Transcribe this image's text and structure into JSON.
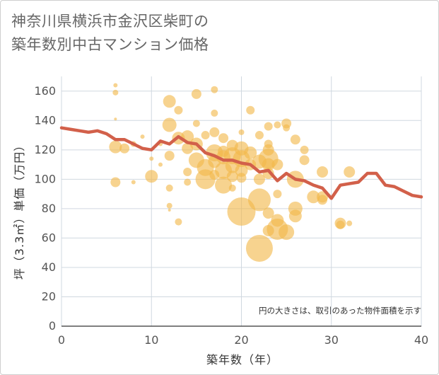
{
  "title_lines": [
    "神奈川県横浜市金沢区柴町の",
    "築年数別中古マンション価格"
  ],
  "chart_data": {
    "type": "scatter",
    "title": "神奈川県横浜市金沢区柴町の築年数別中古マンション価格",
    "xlabel": "築年数（年）",
    "ylabel": "坪（3.3㎡）単価（万円）",
    "xlim": [
      0,
      40
    ],
    "ylim": [
      0,
      170
    ],
    "xticks": [
      0,
      10,
      20,
      30,
      40
    ],
    "yticks": [
      0,
      20,
      40,
      60,
      80,
      100,
      120,
      140,
      160
    ],
    "grid": true,
    "note": "円の大きさは、取引のあった物件面積を示す",
    "colors": {
      "bubble": "#F2B84B",
      "line": "#D2604A",
      "grid": "#D0D8E0"
    },
    "bubble_series": {
      "points": [
        {
          "x": 6,
          "y": 164,
          "size": 3
        },
        {
          "x": 6,
          "y": 159,
          "size": 4
        },
        {
          "x": 6,
          "y": 141,
          "size": 2
        },
        {
          "x": 6,
          "y": 122,
          "size": 9
        },
        {
          "x": 6,
          "y": 98,
          "size": 7
        },
        {
          "x": 7,
          "y": 121,
          "size": 7
        },
        {
          "x": 8,
          "y": 124,
          "size": 4
        },
        {
          "x": 8,
          "y": 98,
          "size": 3
        },
        {
          "x": 9,
          "y": 129,
          "size": 3
        },
        {
          "x": 10,
          "y": 102,
          "size": 9
        },
        {
          "x": 10,
          "y": 114,
          "size": 3
        },
        {
          "x": 11,
          "y": 124,
          "size": 3
        },
        {
          "x": 11,
          "y": 110,
          "size": 3
        },
        {
          "x": 12,
          "y": 153,
          "size": 9
        },
        {
          "x": 12,
          "y": 137,
          "size": 10
        },
        {
          "x": 12,
          "y": 116,
          "size": 7
        },
        {
          "x": 12,
          "y": 94,
          "size": 5
        },
        {
          "x": 12,
          "y": 82,
          "size": 4
        },
        {
          "x": 12,
          "y": 79,
          "size": 2
        },
        {
          "x": 13,
          "y": 147,
          "size": 6
        },
        {
          "x": 13,
          "y": 71,
          "size": 5
        },
        {
          "x": 13,
          "y": 128,
          "size": 9
        },
        {
          "x": 14,
          "y": 129,
          "size": 9
        },
        {
          "x": 14,
          "y": 121,
          "size": 8
        },
        {
          "x": 14,
          "y": 105,
          "size": 6
        },
        {
          "x": 14,
          "y": 98,
          "size": 5
        },
        {
          "x": 15,
          "y": 158,
          "size": 7
        },
        {
          "x": 15,
          "y": 138,
          "size": 5
        },
        {
          "x": 15,
          "y": 124,
          "size": 9
        },
        {
          "x": 15,
          "y": 113,
          "size": 11
        },
        {
          "x": 16,
          "y": 130,
          "size": 6
        },
        {
          "x": 16,
          "y": 100,
          "size": 14
        },
        {
          "x": 16,
          "y": 108,
          "size": 12
        },
        {
          "x": 17,
          "y": 161,
          "size": 5
        },
        {
          "x": 17,
          "y": 145,
          "size": 5
        },
        {
          "x": 17,
          "y": 132,
          "size": 7
        },
        {
          "x": 17,
          "y": 118,
          "size": 12
        },
        {
          "x": 17,
          "y": 112,
          "size": 9
        },
        {
          "x": 17,
          "y": 103,
          "size": 7
        },
        {
          "x": 18,
          "y": 128,
          "size": 7
        },
        {
          "x": 18,
          "y": 115,
          "size": 10
        },
        {
          "x": 18,
          "y": 106,
          "size": 12
        },
        {
          "x": 18,
          "y": 96,
          "size": 12
        },
        {
          "x": 18,
          "y": 119,
          "size": 8
        },
        {
          "x": 19,
          "y": 123,
          "size": 8
        },
        {
          "x": 19,
          "y": 116,
          "size": 12
        },
        {
          "x": 19,
          "y": 109,
          "size": 10
        },
        {
          "x": 19,
          "y": 102,
          "size": 8
        },
        {
          "x": 19,
          "y": 94,
          "size": 5
        },
        {
          "x": 20,
          "y": 132,
          "size": 4
        },
        {
          "x": 20,
          "y": 121,
          "size": 10
        },
        {
          "x": 20,
          "y": 114,
          "size": 12
        },
        {
          "x": 20,
          "y": 106,
          "size": 9
        },
        {
          "x": 20,
          "y": 101,
          "size": 7
        },
        {
          "x": 20,
          "y": 78,
          "size": 20
        },
        {
          "x": 21,
          "y": 147,
          "size": 6
        },
        {
          "x": 21,
          "y": 118,
          "size": 9
        },
        {
          "x": 21,
          "y": 110,
          "size": 8
        },
        {
          "x": 22,
          "y": 130,
          "size": 6
        },
        {
          "x": 22,
          "y": 112,
          "size": 10
        },
        {
          "x": 22,
          "y": 100,
          "size": 8
        },
        {
          "x": 22,
          "y": 86,
          "size": 16
        },
        {
          "x": 22,
          "y": 53,
          "size": 19
        },
        {
          "x": 23,
          "y": 136,
          "size": 6
        },
        {
          "x": 23,
          "y": 124,
          "size": 6
        },
        {
          "x": 23,
          "y": 120,
          "size": 8
        },
        {
          "x": 23,
          "y": 114,
          "size": 14
        },
        {
          "x": 23,
          "y": 110,
          "size": 9
        },
        {
          "x": 23,
          "y": 104,
          "size": 8
        },
        {
          "x": 23,
          "y": 77,
          "size": 8
        },
        {
          "x": 23,
          "y": 65,
          "size": 8
        },
        {
          "x": 24,
          "y": 137,
          "size": 5
        },
        {
          "x": 24,
          "y": 110,
          "size": 8
        },
        {
          "x": 24,
          "y": 90,
          "size": 6
        },
        {
          "x": 24,
          "y": 72,
          "size": 9
        },
        {
          "x": 24,
          "y": 66,
          "size": 15
        },
        {
          "x": 25,
          "y": 138,
          "size": 7
        },
        {
          "x": 25,
          "y": 135,
          "size": 5
        },
        {
          "x": 25,
          "y": 64,
          "size": 11
        },
        {
          "x": 26,
          "y": 127,
          "size": 7
        },
        {
          "x": 26,
          "y": 100,
          "size": 12
        },
        {
          "x": 26,
          "y": 80,
          "size": 10
        },
        {
          "x": 26,
          "y": 75,
          "size": 9
        },
        {
          "x": 27,
          "y": 120,
          "size": 6
        },
        {
          "x": 27,
          "y": 113,
          "size": 7
        },
        {
          "x": 28,
          "y": 88,
          "size": 9
        },
        {
          "x": 29,
          "y": 105,
          "size": 8
        },
        {
          "x": 29,
          "y": 88,
          "size": 8
        },
        {
          "x": 29,
          "y": 86,
          "size": 7
        },
        {
          "x": 31,
          "y": 70,
          "size": 8
        },
        {
          "x": 31,
          "y": 69,
          "size": 6
        },
        {
          "x": 32,
          "y": 105,
          "size": 8
        },
        {
          "x": 32,
          "y": 70,
          "size": 4
        }
      ]
    },
    "line_series": {
      "x": [
        0,
        1,
        2,
        3,
        4,
        5,
        6,
        7,
        8,
        9,
        10,
        11,
        12,
        13,
        14,
        15,
        16,
        17,
        18,
        19,
        20,
        21,
        22,
        23,
        24,
        25,
        26,
        27,
        28,
        29,
        30,
        31,
        32,
        33,
        34,
        35,
        36,
        37,
        38,
        39,
        40
      ],
      "y": [
        135,
        134,
        133,
        132,
        133,
        131,
        127,
        127,
        124,
        121,
        120,
        126,
        124,
        129,
        125,
        124,
        118,
        116,
        113,
        113,
        111,
        110,
        105,
        106,
        99,
        104,
        100,
        99,
        96,
        94,
        87,
        96,
        97,
        98,
        104,
        104,
        96,
        95,
        92,
        89,
        88
      ]
    }
  }
}
